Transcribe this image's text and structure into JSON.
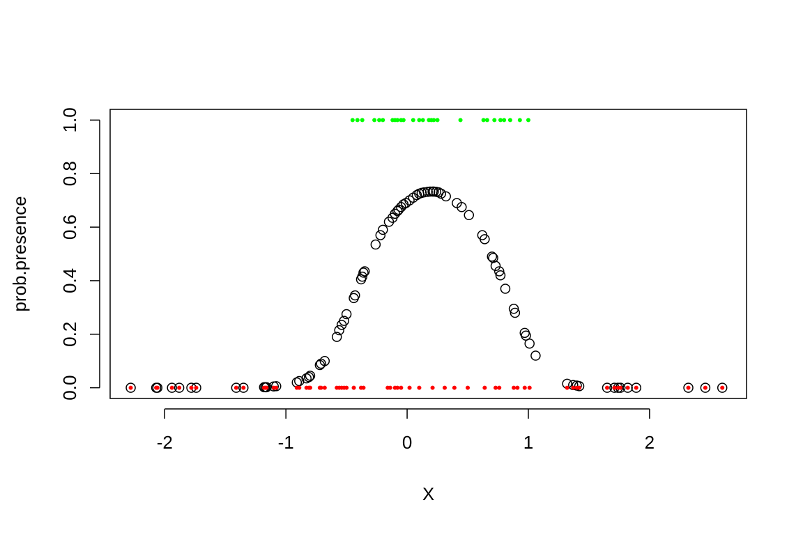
{
  "chart_data": {
    "type": "scatter",
    "xlabel": "X",
    "ylabel": "prob.presence",
    "xlim": [
      -2.45,
      2.8
    ],
    "ylim": [
      -0.04,
      1.04
    ],
    "x_ticks": [
      -2,
      -1,
      0,
      1,
      2
    ],
    "x_tick_labels": [
      "-2",
      "-1",
      "0",
      "1",
      "2"
    ],
    "y_ticks": [
      0,
      0.2,
      0.4,
      0.6,
      0.8,
      1.0
    ],
    "y_tick_labels": [
      "0.0",
      "0.2",
      "0.4",
      "0.6",
      "0.8",
      "1.0"
    ],
    "grid": false,
    "series": [
      {
        "style": "open-circle",
        "color": "#000000",
        "points": [
          [
            -2.28,
            0
          ],
          [
            -2.07,
            0
          ],
          [
            -2.06,
            0
          ],
          [
            -1.94,
            0
          ],
          [
            -1.88,
            0
          ],
          [
            -1.78,
            0
          ],
          [
            -1.74,
            0
          ],
          [
            -1.41,
            0
          ],
          [
            -1.35,
            0
          ],
          [
            -1.18,
            0.002
          ],
          [
            -1.17,
            0.002
          ],
          [
            -1.16,
            0.002
          ],
          [
            -1.1,
            0.005
          ],
          [
            -1.08,
            0.006
          ],
          [
            -0.91,
            0.02
          ],
          [
            -0.89,
            0.025
          ],
          [
            -0.83,
            0.035
          ],
          [
            -0.81,
            0.04
          ],
          [
            -0.8,
            0.045
          ],
          [
            -0.72,
            0.085
          ],
          [
            -0.71,
            0.09
          ],
          [
            -0.68,
            0.1
          ],
          [
            -0.58,
            0.19
          ],
          [
            -0.56,
            0.215
          ],
          [
            -0.54,
            0.235
          ],
          [
            -0.52,
            0.25
          ],
          [
            -0.5,
            0.275
          ],
          [
            -0.44,
            0.335
          ],
          [
            -0.43,
            0.345
          ],
          [
            -0.38,
            0.405
          ],
          [
            -0.37,
            0.415
          ],
          [
            -0.36,
            0.43
          ],
          [
            -0.35,
            0.435
          ],
          [
            -0.26,
            0.535
          ],
          [
            -0.22,
            0.57
          ],
          [
            -0.2,
            0.59
          ],
          [
            -0.15,
            0.62
          ],
          [
            -0.12,
            0.635
          ],
          [
            -0.1,
            0.65
          ],
          [
            -0.08,
            0.66
          ],
          [
            -0.07,
            0.665
          ],
          [
            -0.05,
            0.675
          ],
          [
            -0.03,
            0.685
          ],
          [
            -0.01,
            0.69
          ],
          [
            0.02,
            0.7
          ],
          [
            0.05,
            0.71
          ],
          [
            0.08,
            0.72
          ],
          [
            0.1,
            0.725
          ],
          [
            0.12,
            0.728
          ],
          [
            0.14,
            0.73
          ],
          [
            0.17,
            0.732
          ],
          [
            0.19,
            0.733
          ],
          [
            0.21,
            0.733
          ],
          [
            0.22,
            0.733
          ],
          [
            0.24,
            0.732
          ],
          [
            0.26,
            0.73
          ],
          [
            0.28,
            0.725
          ],
          [
            0.32,
            0.715
          ],
          [
            0.41,
            0.69
          ],
          [
            0.45,
            0.675
          ],
          [
            0.51,
            0.645
          ],
          [
            0.62,
            0.57
          ],
          [
            0.64,
            0.555
          ],
          [
            0.7,
            0.49
          ],
          [
            0.71,
            0.485
          ],
          [
            0.73,
            0.455
          ],
          [
            0.76,
            0.435
          ],
          [
            0.77,
            0.42
          ],
          [
            0.81,
            0.37
          ],
          [
            0.88,
            0.295
          ],
          [
            0.89,
            0.28
          ],
          [
            0.97,
            0.205
          ],
          [
            0.98,
            0.195
          ],
          [
            1.01,
            0.165
          ],
          [
            1.06,
            0.12
          ],
          [
            1.32,
            0.015
          ],
          [
            1.37,
            0.01
          ],
          [
            1.4,
            0.008
          ],
          [
            1.42,
            0.006
          ],
          [
            1.65,
            0
          ],
          [
            1.71,
            0
          ],
          [
            1.74,
            0
          ],
          [
            1.76,
            0
          ],
          [
            1.82,
            0
          ],
          [
            1.89,
            0
          ],
          [
            2.32,
            0
          ],
          [
            2.46,
            0
          ],
          [
            2.6,
            0
          ]
        ]
      },
      {
        "style": "filled-dot",
        "color": "#ff0000",
        "points": [
          [
            -2.28,
            0
          ],
          [
            -2.07,
            0
          ],
          [
            -2.06,
            0
          ],
          [
            -1.94,
            0
          ],
          [
            -1.88,
            0
          ],
          [
            -1.78,
            0
          ],
          [
            -1.74,
            0
          ],
          [
            -1.41,
            0
          ],
          [
            -1.35,
            0
          ],
          [
            -1.18,
            0
          ],
          [
            -1.17,
            0
          ],
          [
            -1.16,
            0
          ],
          [
            -1.1,
            0
          ],
          [
            -1.08,
            0
          ],
          [
            -0.91,
            0
          ],
          [
            -0.89,
            0
          ],
          [
            -0.83,
            0
          ],
          [
            -0.81,
            0
          ],
          [
            -0.8,
            0
          ],
          [
            -0.72,
            0
          ],
          [
            -0.71,
            0
          ],
          [
            -0.68,
            0
          ],
          [
            -0.58,
            0
          ],
          [
            -0.56,
            0
          ],
          [
            -0.54,
            0
          ],
          [
            -0.52,
            0
          ],
          [
            -0.5,
            0
          ],
          [
            -0.44,
            0
          ],
          [
            -0.38,
            0
          ],
          [
            -0.36,
            0
          ],
          [
            -0.16,
            0
          ],
          [
            -0.14,
            0
          ],
          [
            -0.1,
            0
          ],
          [
            -0.08,
            0
          ],
          [
            -0.05,
            0
          ],
          [
            0.02,
            0
          ],
          [
            0.1,
            0
          ],
          [
            0.21,
            0
          ],
          [
            0.31,
            0
          ],
          [
            0.39,
            0
          ],
          [
            0.5,
            0
          ],
          [
            0.64,
            0
          ],
          [
            0.73,
            0
          ],
          [
            0.76,
            0
          ],
          [
            0.88,
            0
          ],
          [
            0.91,
            0
          ],
          [
            0.97,
            0
          ],
          [
            1.01,
            0
          ],
          [
            1.32,
            0
          ],
          [
            1.37,
            0
          ],
          [
            1.4,
            0
          ],
          [
            1.42,
            0
          ],
          [
            1.65,
            0
          ],
          [
            1.71,
            0
          ],
          [
            1.74,
            0
          ],
          [
            1.76,
            0
          ],
          [
            1.82,
            0
          ],
          [
            1.89,
            0
          ],
          [
            2.32,
            0
          ],
          [
            2.46,
            0
          ],
          [
            2.6,
            0
          ]
        ]
      },
      {
        "style": "filled-dot",
        "color": "#00ff00",
        "points": [
          [
            -0.45,
            1
          ],
          [
            -0.41,
            1
          ],
          [
            -0.37,
            1
          ],
          [
            -0.27,
            1
          ],
          [
            -0.23,
            1
          ],
          [
            -0.2,
            1
          ],
          [
            -0.12,
            1
          ],
          [
            -0.1,
            1
          ],
          [
            -0.08,
            1
          ],
          [
            -0.05,
            1
          ],
          [
            -0.03,
            1
          ],
          [
            0.05,
            1
          ],
          [
            0.1,
            1
          ],
          [
            0.13,
            1
          ],
          [
            0.18,
            1
          ],
          [
            0.2,
            1
          ],
          [
            0.22,
            1
          ],
          [
            0.25,
            1
          ],
          [
            0.44,
            1
          ],
          [
            0.63,
            1
          ],
          [
            0.66,
            1
          ],
          [
            0.72,
            1
          ],
          [
            0.77,
            1
          ],
          [
            0.8,
            1
          ],
          [
            0.85,
            1
          ],
          [
            0.93,
            1
          ],
          [
            1.0,
            1
          ]
        ]
      }
    ]
  }
}
